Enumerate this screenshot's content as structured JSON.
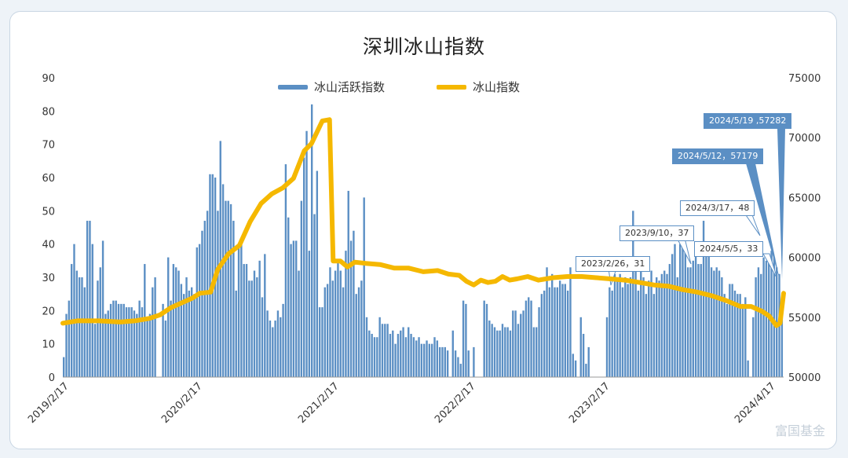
{
  "chart_data": {
    "type": "bar+line",
    "title": "深圳冰山指数",
    "x_tick_labels": [
      "2019/2/17",
      "2020/2/17",
      "2021/2/17",
      "2022/2/17",
      "2023/2/17",
      "2024/4/17"
    ],
    "y_left": {
      "range": [
        0,
        90
      ],
      "ticks": [
        "0",
        "10",
        "20",
        "30",
        "40",
        "50",
        "60",
        "70",
        "80",
        "90"
      ]
    },
    "y_right": {
      "range": [
        50000,
        75000
      ],
      "ticks": [
        "50000",
        "55000",
        "60000",
        "65000",
        "70000",
        "75000"
      ]
    },
    "colors": {
      "bar": "#5b8fc4",
      "line": "#f5b800"
    },
    "series": [
      {
        "name": "冰山活跃指数",
        "type": "bar",
        "axis": "left",
        "values": [
          6,
          19,
          23,
          34,
          40,
          32,
          30,
          30,
          27,
          47,
          47,
          40,
          16,
          29,
          33,
          41,
          19,
          20,
          22,
          23,
          23,
          22,
          22,
          22,
          21,
          21,
          21,
          20,
          19,
          23,
          21,
          34,
          18,
          19,
          27,
          30,
          0,
          0,
          22,
          17,
          36,
          23,
          34,
          33,
          32,
          28,
          25,
          30,
          26,
          27,
          25,
          39,
          40,
          44,
          47,
          50,
          61,
          61,
          60,
          50,
          71,
          58,
          53,
          53,
          52,
          47,
          26,
          39,
          40,
          34,
          34,
          29,
          29,
          32,
          30,
          35,
          24,
          37,
          20,
          17,
          15,
          17,
          20,
          18,
          22,
          64,
          48,
          40,
          41,
          41,
          32,
          53,
          66,
          74,
          38,
          82,
          49,
          62,
          21,
          21,
          27,
          28,
          33,
          29,
          32,
          35,
          32,
          27,
          38,
          56,
          41,
          44,
          25,
          27,
          29,
          54,
          18,
          14,
          13,
          12,
          12,
          18,
          16,
          16,
          16,
          13,
          14,
          10,
          13,
          14,
          15,
          12,
          15,
          13,
          12,
          11,
          12,
          10,
          10,
          11,
          10,
          10,
          12,
          11,
          9,
          9,
          9,
          8,
          0,
          14,
          8,
          6,
          4,
          23,
          22,
          8,
          0,
          9,
          0,
          0,
          0,
          23,
          22,
          17,
          16,
          15,
          14,
          14,
          16,
          15,
          15,
          14,
          20,
          20,
          16,
          19,
          20,
          23,
          24,
          23,
          15,
          15,
          21,
          25,
          26,
          33,
          27,
          31,
          27,
          27,
          29,
          28,
          28,
          26,
          33,
          7,
          5,
          0,
          18,
          13,
          4,
          9,
          0,
          0,
          0,
          0,
          0,
          0,
          18,
          27,
          26,
          31,
          29,
          31,
          27,
          30,
          28,
          30,
          50,
          33,
          26,
          33,
          30,
          25,
          29,
          32,
          25,
          30,
          29,
          31,
          32,
          31,
          34,
          37,
          40,
          30,
          40,
          42,
          38,
          33,
          33,
          35,
          37,
          34,
          34,
          47,
          38,
          38,
          33,
          32,
          33,
          32,
          30,
          25,
          22,
          28,
          28,
          26,
          25,
          25,
          22,
          24,
          5,
          0,
          18,
          30,
          33,
          31,
          36,
          35,
          36,
          38,
          36,
          33,
          31,
          24
        ]
      },
      {
        "name": "冰山指数",
        "type": "line",
        "axis": "right",
        "points": [
          [
            0,
            54500
          ],
          [
            0.02,
            54700
          ],
          [
            0.05,
            54700
          ],
          [
            0.08,
            54600
          ],
          [
            0.1,
            54700
          ],
          [
            0.12,
            54900
          ],
          [
            0.135,
            55200
          ],
          [
            0.15,
            55800
          ],
          [
            0.165,
            56200
          ],
          [
            0.18,
            56600
          ],
          [
            0.19,
            57000
          ],
          [
            0.205,
            57100
          ],
          [
            0.215,
            59000
          ],
          [
            0.23,
            60300
          ],
          [
            0.245,
            61000
          ],
          [
            0.26,
            63000
          ],
          [
            0.275,
            64500
          ],
          [
            0.29,
            65300
          ],
          [
            0.305,
            65800
          ],
          [
            0.32,
            66600
          ],
          [
            0.335,
            68900
          ],
          [
            0.345,
            69500
          ],
          [
            0.36,
            71400
          ],
          [
            0.37,
            71500
          ],
          [
            0.375,
            59700
          ],
          [
            0.385,
            59700
          ],
          [
            0.395,
            59200
          ],
          [
            0.405,
            59600
          ],
          [
            0.42,
            59500
          ],
          [
            0.44,
            59400
          ],
          [
            0.46,
            59100
          ],
          [
            0.48,
            59100
          ],
          [
            0.5,
            58800
          ],
          [
            0.52,
            58900
          ],
          [
            0.535,
            58600
          ],
          [
            0.55,
            58500
          ],
          [
            0.56,
            58000
          ],
          [
            0.57,
            57700
          ],
          [
            0.58,
            58100
          ],
          [
            0.59,
            57900
          ],
          [
            0.6,
            58000
          ],
          [
            0.61,
            58400
          ],
          [
            0.62,
            58100
          ],
          [
            0.63,
            58200
          ],
          [
            0.645,
            58400
          ],
          [
            0.66,
            58100
          ],
          [
            0.68,
            58300
          ],
          [
            0.7,
            58400
          ],
          [
            0.72,
            58400
          ],
          [
            0.74,
            58300
          ],
          [
            0.76,
            58200
          ],
          [
            0.78,
            58100
          ],
          [
            0.8,
            57900
          ],
          [
            0.82,
            57700
          ],
          [
            0.84,
            57600
          ],
          [
            0.86,
            57300
          ],
          [
            0.88,
            57100
          ],
          [
            0.9,
            56800
          ],
          [
            0.92,
            56400
          ],
          [
            0.94,
            55900
          ],
          [
            0.955,
            55900
          ],
          [
            0.97,
            55500
          ],
          [
            0.98,
            55100
          ],
          [
            0.99,
            54300
          ],
          [
            0.995,
            54500
          ],
          [
            1.0,
            57000
          ]
        ]
      }
    ],
    "annotations": [
      {
        "text": "2024/5/19 ,57282",
        "style": "filled"
      },
      {
        "text": "2024/5/12，57179",
        "style": "filled"
      },
      {
        "text": "2024/3/17，48",
        "style": "outline"
      },
      {
        "text": "2023/9/10，37",
        "style": "outline"
      },
      {
        "text": "2024/5/5，33",
        "style": "outline"
      },
      {
        "text": "2023/2/26，31",
        "style": "outline"
      }
    ],
    "legend_position": "top-center",
    "grid": false
  },
  "watermark": "富国基金"
}
